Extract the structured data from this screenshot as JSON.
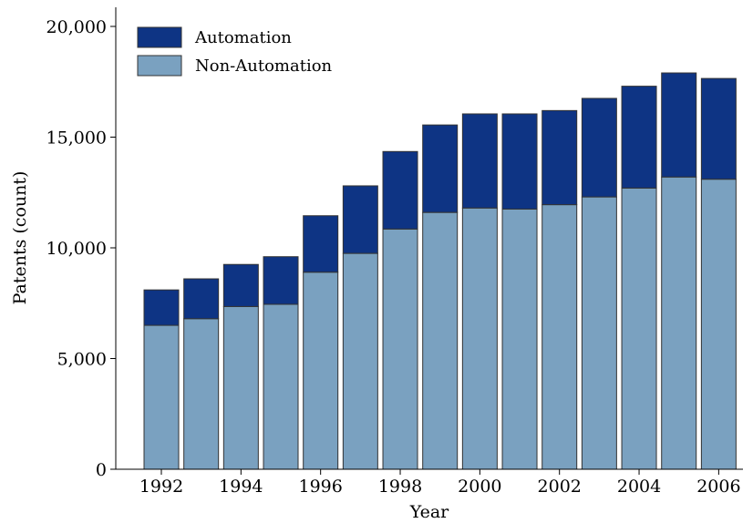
{
  "chart_data": {
    "type": "bar",
    "stacked": true,
    "title": "",
    "xlabel": "Year",
    "ylabel": "Patents (count)",
    "categories": [
      "1992",
      "1993",
      "1994",
      "1995",
      "1996",
      "1997",
      "1998",
      "1999",
      "2000",
      "2001",
      "2002",
      "2003",
      "2004",
      "2005",
      "2006"
    ],
    "x_tick_labels": [
      "1992",
      "1994",
      "1996",
      "1998",
      "2000",
      "2002",
      "2004",
      "2006"
    ],
    "ylim": [
      0,
      20000
    ],
    "y_ticks": [
      0,
      5000,
      10000,
      15000,
      20000
    ],
    "y_tick_labels": [
      "0",
      "5,000",
      "10,000",
      "15,000",
      "20,000"
    ],
    "grid": false,
    "legend_position": "top-left",
    "series": [
      {
        "name": "Non-Automation",
        "color": "#7aa1c0",
        "values": [
          6500,
          6800,
          7350,
          7450,
          8900,
          9750,
          10850,
          11600,
          11800,
          11750,
          11950,
          12300,
          12700,
          13200,
          13100
        ]
      },
      {
        "name": "Automation",
        "color": "#0e3484",
        "values": [
          1600,
          1800,
          1900,
          2150,
          2550,
          3050,
          3500,
          3950,
          4250,
          4300,
          4250,
          4450,
          4600,
          4700,
          4550
        ]
      }
    ],
    "legend_order": [
      "Automation",
      "Non-Automation"
    ]
  }
}
